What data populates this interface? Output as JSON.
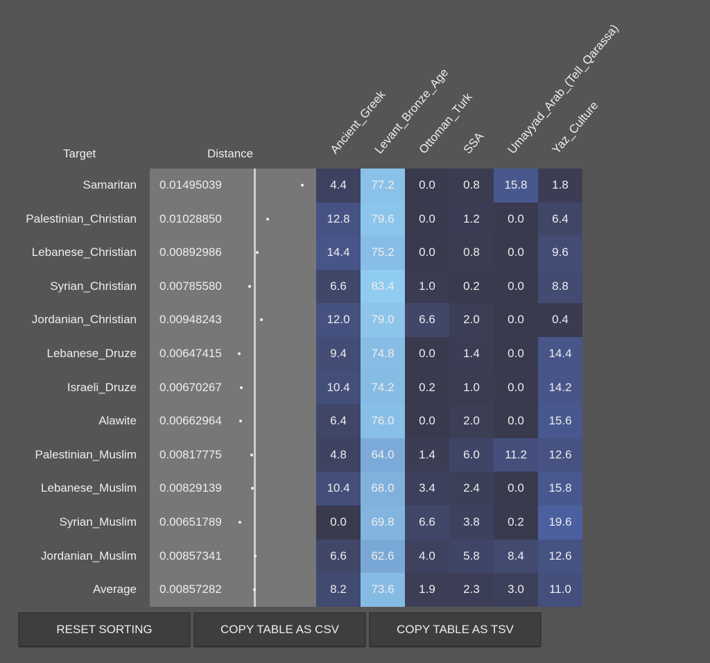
{
  "headers": {
    "target": "Target",
    "distance": "Distance",
    "columns": [
      "Ancient_Greek",
      "Levant_Bronze_Age",
      "Ottoman_Turk",
      "SSA",
      "Umayyad_Arab_(Tell_Qarassa)",
      "Yaz_Culture"
    ]
  },
  "rows": [
    {
      "target": "Samaritan",
      "distance": "0.01495039",
      "values": [
        "4.4",
        "77.2",
        "0.0",
        "0.8",
        "15.8",
        "1.8"
      ]
    },
    {
      "target": "Palestinian_Christian",
      "distance": "0.01028850",
      "values": [
        "12.8",
        "79.6",
        "0.0",
        "1.2",
        "0.0",
        "6.4"
      ]
    },
    {
      "target": "Lebanese_Christian",
      "distance": "0.00892986",
      "values": [
        "14.4",
        "75.2",
        "0.0",
        "0.8",
        "0.0",
        "9.6"
      ]
    },
    {
      "target": "Syrian_Christian",
      "distance": "0.00785580",
      "values": [
        "6.6",
        "83.4",
        "1.0",
        "0.2",
        "0.0",
        "8.8"
      ]
    },
    {
      "target": "Jordanian_Christian",
      "distance": "0.00948243",
      "values": [
        "12.0",
        "79.0",
        "6.6",
        "2.0",
        "0.0",
        "0.4"
      ]
    },
    {
      "target": "Lebanese_Druze",
      "distance": "0.00647415",
      "values": [
        "9.4",
        "74.8",
        "0.0",
        "1.4",
        "0.0",
        "14.4"
      ]
    },
    {
      "target": "Israeli_Druze",
      "distance": "0.00670267",
      "values": [
        "10.4",
        "74.2",
        "0.2",
        "1.0",
        "0.0",
        "14.2"
      ]
    },
    {
      "target": "Alawite",
      "distance": "0.00662964",
      "values": [
        "6.4",
        "76.0",
        "0.0",
        "2.0",
        "0.0",
        "15.6"
      ]
    },
    {
      "target": "Palestinian_Muslim",
      "distance": "0.00817775",
      "values": [
        "4.8",
        "64.0",
        "1.4",
        "6.0",
        "11.2",
        "12.6"
      ]
    },
    {
      "target": "Lebanese_Muslim",
      "distance": "0.00829139",
      "values": [
        "10.4",
        "68.0",
        "3.4",
        "2.4",
        "0.0",
        "15.8"
      ]
    },
    {
      "target": "Syrian_Muslim",
      "distance": "0.00651789",
      "values": [
        "0.0",
        "69.8",
        "6.6",
        "3.8",
        "0.2",
        "19.6"
      ]
    },
    {
      "target": "Jordanian_Muslim",
      "distance": "0.00857341",
      "values": [
        "6.6",
        "62.6",
        "4.0",
        "5.8",
        "8.4",
        "12.6"
      ]
    },
    {
      "target": "Average",
      "distance": "0.00857282",
      "values": [
        "8.2",
        "73.6",
        "1.9",
        "2.3",
        "3.0",
        "11.0"
      ]
    }
  ],
  "buttons": [
    "RESET SORTING",
    "COPY TABLE AS CSV",
    "COPY TABLE AS TSV"
  ]
}
